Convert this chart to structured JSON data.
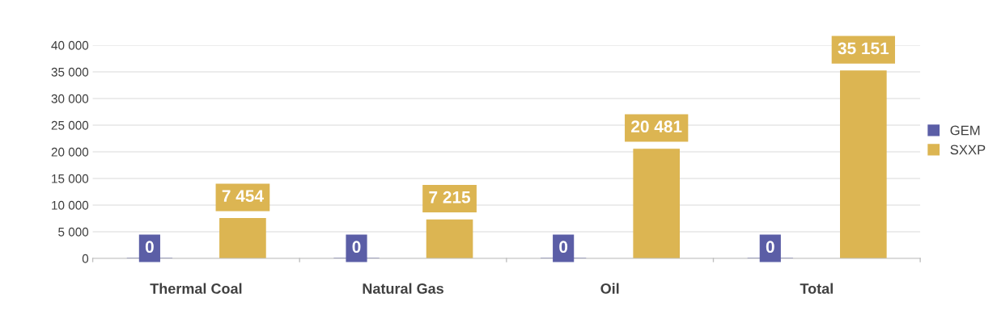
{
  "chart_data": {
    "type": "bar",
    "categories": [
      "Thermal Coal",
      "Natural Gas",
      "Oil",
      "Total"
    ],
    "series": [
      {
        "name": "GEM",
        "color": "#5b5ea6",
        "values": [
          0,
          0,
          0,
          0
        ],
        "value_labels": [
          "0",
          "0",
          "0",
          "0"
        ]
      },
      {
        "name": "SXXP",
        "color": "#dcb552",
        "values": [
          7454,
          7215,
          20481,
          35151
        ],
        "value_labels": [
          "7 454",
          "7 215",
          "20 481",
          "35 151"
        ]
      }
    ],
    "ylim": [
      0,
      40000
    ],
    "yticks": [
      0,
      {
        "value": 5000,
        "label": "5 000"
      },
      {
        "value": 10000,
        "label": "10 000"
      },
      {
        "value": 15000,
        "label": "15 000"
      },
      {
        "value": 20000,
        "label": "20 000"
      },
      {
        "value": 25000,
        "label": "25 000"
      },
      {
        "value": 30000,
        "label": "30 000"
      },
      {
        "value": 35000,
        "label": "35 000"
      },
      {
        "value": 40000,
        "label": "40 000"
      }
    ],
    "grid": "y",
    "legend": "right"
  }
}
